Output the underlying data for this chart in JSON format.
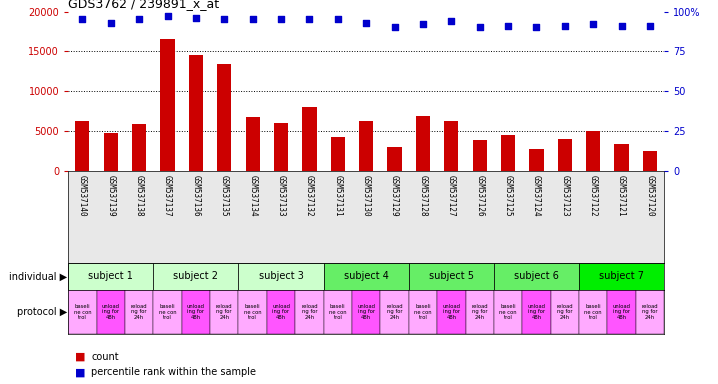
{
  "title": "GDS3762 / 239891_x_at",
  "categories": [
    "GSM537140",
    "GSM537139",
    "GSM537138",
    "GSM537137",
    "GSM537136",
    "GSM537135",
    "GSM537134",
    "GSM537133",
    "GSM537132",
    "GSM537131",
    "GSM537130",
    "GSM537129",
    "GSM537128",
    "GSM537127",
    "GSM537126",
    "GSM537125",
    "GSM537124",
    "GSM537123",
    "GSM537122",
    "GSM537121",
    "GSM537120"
  ],
  "counts": [
    6200,
    4700,
    5900,
    16600,
    14500,
    13400,
    6800,
    5950,
    8050,
    4200,
    6200,
    3000,
    6950,
    6200,
    3850,
    4450,
    2800,
    3950,
    5000,
    3350,
    2450
  ],
  "percentile_ranks": [
    95,
    93,
    95,
    97,
    96,
    95,
    95,
    95,
    95,
    95,
    93,
    90,
    92,
    94,
    90,
    91,
    90,
    91,
    92,
    91,
    91
  ],
  "bar_color": "#cc0000",
  "dot_color": "#0000cc",
  "ylim_left": [
    0,
    20000
  ],
  "ylim_right": [
    0,
    100
  ],
  "yticks_left": [
    0,
    5000,
    10000,
    15000,
    20000
  ],
  "yticks_right": [
    0,
    25,
    50,
    75,
    100
  ],
  "subjects": [
    {
      "label": "subject 1",
      "start": 0,
      "end": 3,
      "color": "#ccffcc"
    },
    {
      "label": "subject 2",
      "start": 3,
      "end": 6,
      "color": "#ccffcc"
    },
    {
      "label": "subject 3",
      "start": 6,
      "end": 9,
      "color": "#ccffcc"
    },
    {
      "label": "subject 4",
      "start": 9,
      "end": 12,
      "color": "#66ee66"
    },
    {
      "label": "subject 5",
      "start": 12,
      "end": 15,
      "color": "#66ee66"
    },
    {
      "label": "subject 6",
      "start": 15,
      "end": 18,
      "color": "#66ee66"
    },
    {
      "label": "subject 7",
      "start": 18,
      "end": 21,
      "color": "#00ee00"
    }
  ],
  "protocol_colors": [
    "#ffaaff",
    "#ff55ff",
    "#ffaaff"
  ],
  "protocol_labels": [
    [
      "baseli",
      "ne con",
      "trol"
    ],
    [
      "unload",
      "ing for",
      "48h"
    ],
    [
      "reload",
      "ng for",
      "24h"
    ]
  ],
  "individual_label": "individual",
  "protocol_label": "protocol",
  "legend_count_color": "#cc0000",
  "legend_dot_color": "#0000cc",
  "tick_color_left": "#cc0000",
  "tick_color_right": "#0000cc",
  "bg_color": "#e8e8e8"
}
